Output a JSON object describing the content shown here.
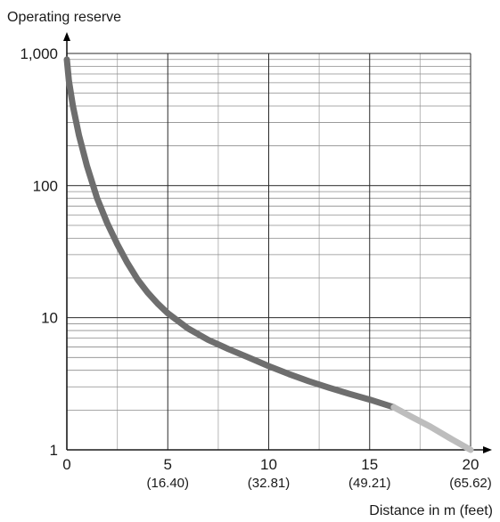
{
  "chart_data": {
    "type": "line",
    "ylabel": "Operating reserve",
    "xlabel": "Distance in m (feet)",
    "xlim": [
      0,
      20
    ],
    "ylim": [
      1,
      1000
    ],
    "y_scale": "log",
    "grid": true,
    "x_ticks": [
      {
        "value": 0,
        "label": "0",
        "sublabel": ""
      },
      {
        "value": 5,
        "label": "5",
        "sublabel": "(16.40)"
      },
      {
        "value": 10,
        "label": "10",
        "sublabel": "(32.81)"
      },
      {
        "value": 15,
        "label": "15",
        "sublabel": "(49.21)"
      },
      {
        "value": 20,
        "label": "20",
        "sublabel": "(65.62)"
      }
    ],
    "y_ticks": [
      {
        "value": 1,
        "label": "1"
      },
      {
        "value": 10,
        "label": "10"
      },
      {
        "value": 100,
        "label": "100"
      },
      {
        "value": 1000,
        "label": "1,000"
      }
    ],
    "series": [
      {
        "color": "#6e6e6e",
        "x": [
          0,
          0.1,
          0.3,
          0.6,
          1,
          1.5,
          2,
          2.5,
          3,
          3.5,
          4,
          4.5,
          5,
          6,
          7,
          8,
          9,
          10,
          11,
          12,
          13,
          14,
          15,
          16.2
        ],
        "y": [
          900,
          620,
          400,
          240,
          140,
          80,
          52,
          36,
          26,
          19.5,
          15.5,
          12.8,
          10.8,
          8.3,
          6.8,
          5.8,
          5.0,
          4.3,
          3.75,
          3.3,
          2.95,
          2.65,
          2.4,
          2.1
        ]
      },
      {
        "color": "#bdbdbd",
        "x": [
          16.2,
          17,
          18,
          19,
          20
        ],
        "y": [
          2.1,
          1.8,
          1.5,
          1.22,
          1.0
        ]
      }
    ]
  }
}
